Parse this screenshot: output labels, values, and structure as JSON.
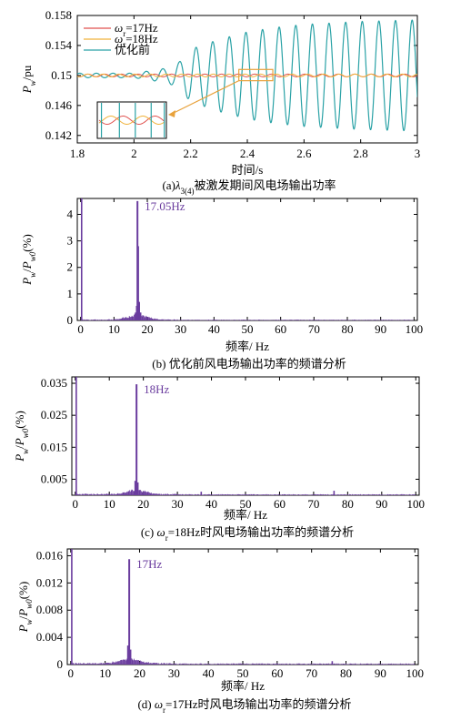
{
  "colors": {
    "line_17": "#e0524f",
    "line_18": "#f0b23a",
    "line_before": "#2aa2a6",
    "spectrum": "#6a3c9e",
    "inset_box": "#e8a23c"
  },
  "chart_data": [
    {
      "type": "line",
      "caption": "(a)λ3(4)被激发期间风电场输出功率",
      "xlabel": "时间/s",
      "ylabel": "Pw/pu",
      "xlim": [
        1.8,
        3.0
      ],
      "ylim": [
        0.141,
        0.158
      ],
      "xticks": [
        "1.8",
        "2",
        "2.2",
        "2.4",
        "2.6",
        "2.8",
        "3"
      ],
      "yticks": [
        "0.142",
        "0.146",
        "0.15",
        "0.154",
        "0.158"
      ],
      "legend": [
        "ωr=17Hz",
        "ωr=18Hz",
        "优化前"
      ],
      "legend_position": "top-left",
      "series": [
        {
          "name": "ωr=17Hz",
          "mean": 0.15,
          "amplitude": 0.00018,
          "frequency_hz": 17
        },
        {
          "name": "ωr=18Hz",
          "mean": 0.15,
          "amplitude": 0.00018,
          "frequency_hz": 18
        },
        {
          "name": "优化前",
          "mean": 0.15,
          "frequency_hz": 17.05,
          "amplitude_envelope": {
            "x": [
              1.8,
              2.0,
              2.12,
              2.16,
              2.2,
              2.3,
              2.4,
              2.5,
              2.6,
              2.8,
              3.0
            ],
            "amplitude": [
              0.0003,
              0.0003,
              0.001,
              0.0018,
              0.0035,
              0.0048,
              0.0058,
              0.0064,
              0.0068,
              0.0072,
              0.0074
            ]
          }
        }
      ],
      "inset": true
    },
    {
      "type": "bar",
      "caption": "(b) 优化前风电场输出功率的频谱分析",
      "xlabel": "频率/ Hz",
      "ylabel": "Pw/Pw0(%)",
      "xlim": [
        -1,
        101
      ],
      "ylim": [
        0,
        4.6
      ],
      "xticks": [
        "0",
        "10",
        "20",
        "30",
        "40",
        "50",
        "60",
        "70",
        "80",
        "90",
        "100"
      ],
      "yticks": [
        "0",
        "1",
        "2",
        "3",
        "4"
      ],
      "annotation": "17.05Hz",
      "peak": {
        "x": 17.05,
        "value": 4.5
      },
      "peaks": [
        {
          "x": 0.3,
          "value": 4.6
        },
        {
          "x": 16.8,
          "value": 0.55
        },
        {
          "x": 17.3,
          "value": 2.8
        },
        {
          "x": 17.6,
          "value": 0.7
        },
        {
          "x": 16.5,
          "value": 0.3
        },
        {
          "x": 18.0,
          "value": 0.3
        }
      ],
      "noise": {
        "base": 0.03,
        "skirt_center": 17.05,
        "skirt_height": 0.22,
        "skirt_width": 4
      }
    },
    {
      "type": "bar",
      "caption": "(c) ωr=18Hz时风电场输出功率的频谱分析",
      "xlabel": "频率/ Hz",
      "ylabel": "Pw/Pw0(%)",
      "xlim": [
        -1,
        101
      ],
      "ylim": [
        0,
        0.037
      ],
      "xticks": [
        "0",
        "10",
        "20",
        "30",
        "40",
        "50",
        "60",
        "70",
        "80",
        "90",
        "100"
      ],
      "yticks": [
        "0.005",
        "0.015",
        "0.025",
        "0.035"
      ],
      "annotation": "18Hz",
      "peak": {
        "x": 18.0,
        "value": 0.0347
      },
      "peaks": [
        {
          "x": 0.3,
          "value": 0.037
        },
        {
          "x": 17.6,
          "value": 0.0045
        },
        {
          "x": 18.4,
          "value": 0.004
        },
        {
          "x": 37.0,
          "value": 0.0011
        },
        {
          "x": 76.0,
          "value": 0.0014
        }
      ],
      "noise": {
        "base": 0.00035,
        "skirt_center": 18,
        "skirt_height": 0.0015,
        "skirt_width": 4
      }
    },
    {
      "type": "bar",
      "caption": "(d) ωr=17Hz时风电场输出功率的频谱分析",
      "xlabel": "频率/ Hz",
      "ylabel": "Pw/Pw0(%)",
      "xlim": [
        -1,
        101
      ],
      "ylim": [
        0,
        0.017
      ],
      "xticks": [
        "0",
        "10",
        "20",
        "30",
        "40",
        "50",
        "60",
        "70",
        "80",
        "90",
        "100"
      ],
      "yticks": [
        "0",
        "0.004",
        "0.008",
        "0.012",
        "0.016"
      ],
      "annotation": "17Hz",
      "peak": {
        "x": 17.0,
        "value": 0.0155
      },
      "peaks": [
        {
          "x": 0.3,
          "value": 0.017
        },
        {
          "x": 16.6,
          "value": 0.0028
        },
        {
          "x": 17.4,
          "value": 0.0022
        },
        {
          "x": 76.0,
          "value": 0.0005
        }
      ],
      "noise": {
        "base": 0.00018,
        "skirt_center": 17,
        "skirt_height": 0.0008,
        "skirt_width": 4
      }
    }
  ]
}
